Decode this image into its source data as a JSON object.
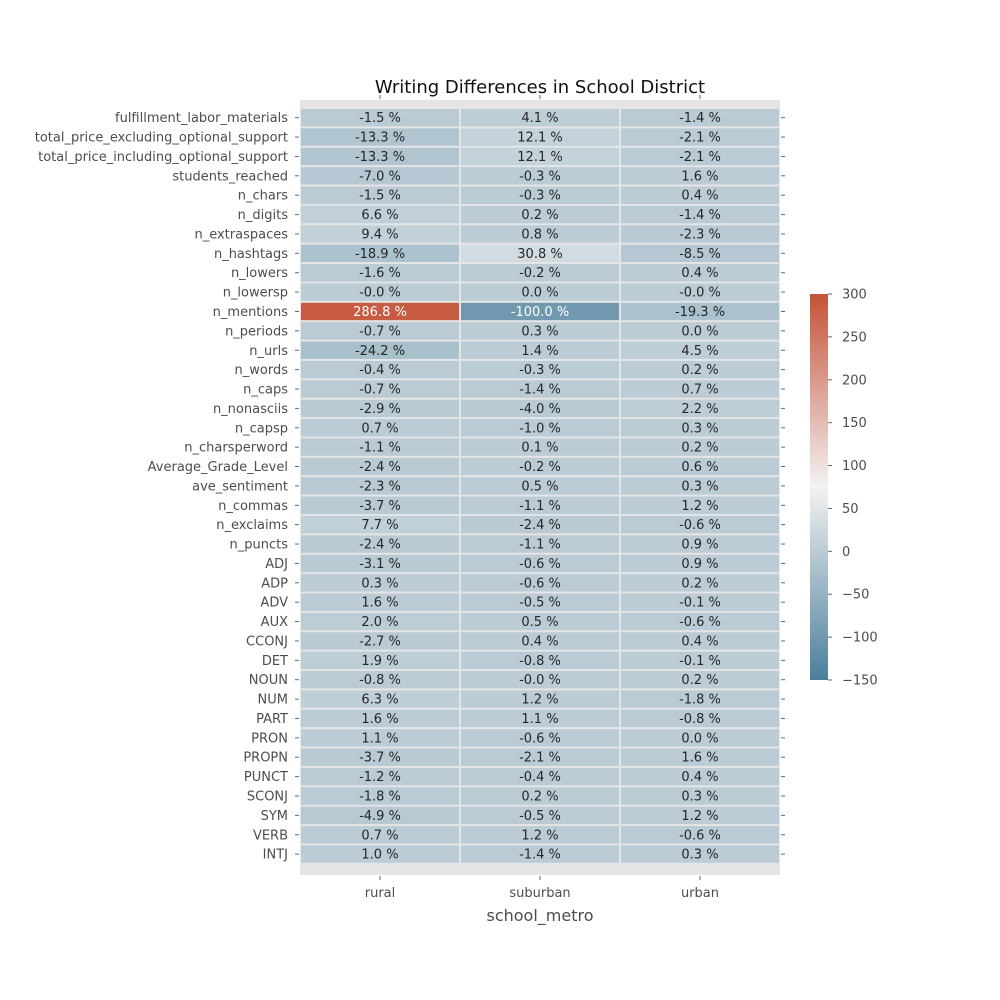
{
  "chart_data": {
    "type": "heatmap",
    "title": "Writing Differences in School District",
    "xlabel": "school_metro",
    "ylabel": "",
    "columns": [
      "rural",
      "suburban",
      "urban"
    ],
    "rows": [
      "fulfillment_labor_materials",
      "total_price_excluding_optional_support",
      "total_price_including_optional_support",
      "students_reached",
      "n_chars",
      "n_digits",
      "n_extraspaces",
      "n_hashtags",
      "n_lowers",
      "n_lowersp",
      "n_mentions",
      "n_periods",
      "n_urls",
      "n_words",
      "n_caps",
      "n_nonasciis",
      "n_capsp",
      "n_charsperword",
      "Average_Grade_Level",
      "ave_sentiment",
      "n_commas",
      "n_exclaims",
      "n_puncts",
      "ADJ",
      "ADP",
      "ADV",
      "AUX",
      "CCONJ",
      "DET",
      "NOUN",
      "NUM",
      "PART",
      "PRON",
      "PROPN",
      "PUNCT",
      "SCONJ",
      "SYM",
      "VERB",
      "INTJ"
    ],
    "values": [
      [
        -1.5,
        4.1,
        -1.4
      ],
      [
        -13.3,
        12.1,
        -2.1
      ],
      [
        -13.3,
        12.1,
        -2.1
      ],
      [
        -7.0,
        -0.3,
        1.6
      ],
      [
        -1.5,
        -0.3,
        0.4
      ],
      [
        6.6,
        0.2,
        -1.4
      ],
      [
        9.4,
        0.8,
        -2.3
      ],
      [
        -18.9,
        30.8,
        -8.5
      ],
      [
        -1.6,
        -0.2,
        0.4
      ],
      [
        -0.0,
        0.0,
        -0.0
      ],
      [
        286.8,
        -100.0,
        -19.3
      ],
      [
        -0.7,
        0.3,
        0.0
      ],
      [
        -24.2,
        1.4,
        4.5
      ],
      [
        -0.4,
        -0.3,
        0.2
      ],
      [
        -0.7,
        -1.4,
        0.7
      ],
      [
        -2.9,
        -4.0,
        2.2
      ],
      [
        0.7,
        -1.0,
        0.3
      ],
      [
        -1.1,
        0.1,
        0.2
      ],
      [
        -2.4,
        -0.2,
        0.6
      ],
      [
        -2.3,
        0.5,
        0.3
      ],
      [
        -3.7,
        -1.1,
        1.2
      ],
      [
        7.7,
        -2.4,
        -0.6
      ],
      [
        -2.4,
        -1.1,
        0.9
      ],
      [
        -3.1,
        -0.6,
        0.9
      ],
      [
        0.3,
        -0.6,
        0.2
      ],
      [
        1.6,
        -0.5,
        -0.1
      ],
      [
        2.0,
        0.5,
        -0.6
      ],
      [
        -2.7,
        0.4,
        0.4
      ],
      [
        1.9,
        -0.8,
        -0.1
      ],
      [
        -0.8,
        -0.0,
        0.2
      ],
      [
        6.3,
        1.2,
        -1.8
      ],
      [
        1.6,
        1.1,
        -0.8
      ],
      [
        1.1,
        -0.6,
        0.0
      ],
      [
        -3.7,
        -2.1,
        1.6
      ],
      [
        -1.2,
        -0.4,
        0.4
      ],
      [
        -1.8,
        0.2,
        0.3
      ],
      [
        -4.9,
        -0.5,
        1.2
      ],
      [
        0.7,
        1.2,
        -0.6
      ],
      [
        1.0,
        -1.4,
        0.3
      ]
    ],
    "value_suffix": " %",
    "colorbar": {
      "min": -150,
      "max": 300,
      "ticks": [
        -150,
        -100,
        -50,
        0,
        50,
        100,
        150,
        200,
        250,
        300
      ],
      "colors": {
        "low": "#4a7f9c",
        "mid": "#f3f2f2",
        "high": "#c45238"
      }
    },
    "grid": false,
    "legend": "colorbar-right"
  }
}
